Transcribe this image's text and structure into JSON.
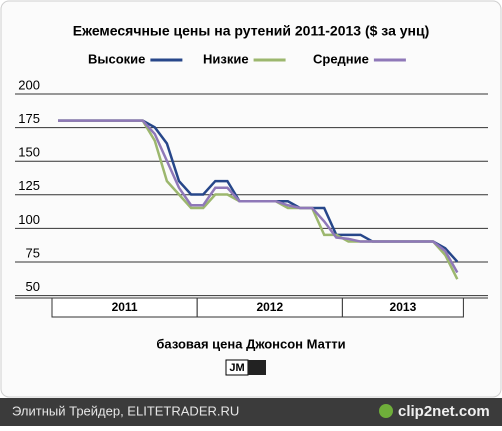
{
  "chart_data": {
    "type": "line",
    "title": "Ежемесячные цены на рутений 2011-2013 ($ за унц)",
    "categories": [
      "2011",
      null,
      null,
      null,
      null,
      null,
      null,
      null,
      null,
      null,
      null,
      null,
      "2012",
      null,
      null,
      null,
      null,
      null,
      null,
      null,
      null,
      null,
      null,
      null,
      "2013",
      null,
      null,
      null,
      null,
      null,
      null,
      null,
      null,
      null
    ],
    "series": [
      {
        "name": "Высокие",
        "color": "#27478a",
        "values": [
          175,
          175,
          175,
          175,
          175,
          175,
          175,
          175,
          170,
          158,
          130,
          120,
          120,
          130,
          130,
          115,
          115,
          115,
          115,
          115,
          110,
          110,
          110,
          90,
          90,
          90,
          85,
          85,
          85,
          85,
          85,
          85,
          80,
          70
        ]
      },
      {
        "name": "Низкие",
        "color": "#9cb76e",
        "values": [
          175,
          175,
          175,
          175,
          175,
          175,
          175,
          175,
          160,
          130,
          120,
          110,
          110,
          120,
          120,
          115,
          115,
          115,
          115,
          110,
          110,
          110,
          90,
          90,
          85,
          85,
          85,
          85,
          85,
          85,
          85,
          85,
          75,
          57
        ]
      },
      {
        "name": "Средние",
        "color": "#8f78b8",
        "values": [
          175,
          175,
          175,
          175,
          175,
          175,
          175,
          175,
          165,
          145,
          125,
          112,
          112,
          125,
          125,
          115,
          115,
          115,
          115,
          112,
          110,
          110,
          100,
          88,
          87,
          85,
          85,
          85,
          85,
          85,
          85,
          85,
          78,
          62
        ]
      }
    ],
    "ylim": [
      43,
      200
    ],
    "yticks": [
      200,
      175,
      150,
      125,
      100,
      75,
      50
    ],
    "grid": true,
    "source": "базовая цена Джонсон Матти",
    "logo": "JM"
  },
  "footer": {
    "text": "Элитный Трейдер, ELITETRADER.RU",
    "watermark": "clip2net.com"
  }
}
